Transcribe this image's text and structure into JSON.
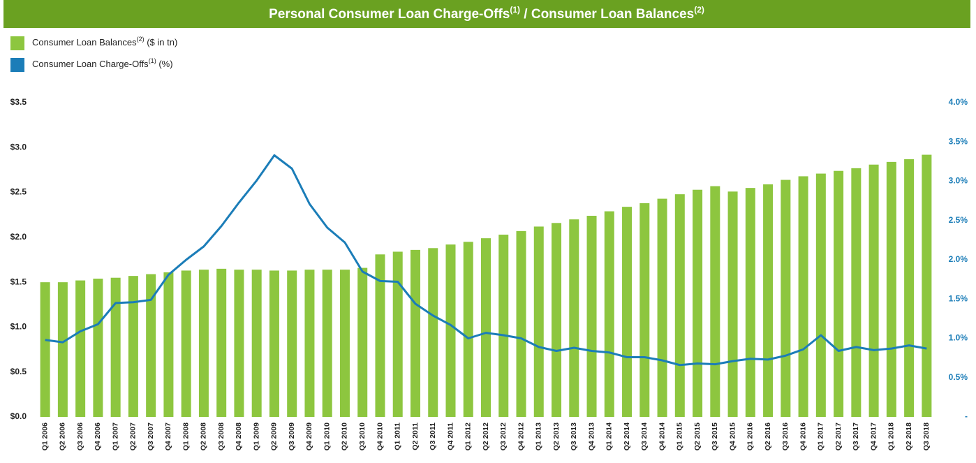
{
  "chart_data": {
    "type": "bar_line",
    "title": [
      "Personal Consumer Loan Charge-Offs",
      "(1)",
      " / Consumer Loan Balances",
      "(2)"
    ],
    "title_color": "#6aa121",
    "categories": [
      "Q1 2006",
      "Q2 2006",
      "Q3 2006",
      "Q4 2006",
      "Q1 2007",
      "Q2 2007",
      "Q3 2007",
      "Q4 2007",
      "Q1 2008",
      "Q2 2008",
      "Q3 2008",
      "Q4 2008",
      "Q1 2009",
      "Q2 2009",
      "Q3 2009",
      "Q4 2009",
      "Q1 2010",
      "Q2 2010",
      "Q3 2010",
      "Q4 2010",
      "Q1 2011",
      "Q2 2011",
      "Q3 2011",
      "Q4 2011",
      "Q1 2012",
      "Q2 2012",
      "Q3 2012",
      "Q4 2012",
      "Q1 2013",
      "Q2 2013",
      "Q3 2013",
      "Q4 2013",
      "Q1 2014",
      "Q2 2014",
      "Q3 2014",
      "Q4 2014",
      "Q1 2015",
      "Q2 2015",
      "Q3 2015",
      "Q4 2015",
      "Q1 2016",
      "Q2 2016",
      "Q3 2016",
      "Q4 2016",
      "Q1 2017",
      "Q2 2017",
      "Q3 2017",
      "Q4 2017",
      "Q1 2018",
      "Q2 2018",
      "Q3 2018"
    ],
    "series": [
      {
        "name": "Consumer Loan Balances",
        "name_note": "(2)",
        "name_unit": "($ in tn)",
        "type": "bar",
        "color": "#8dc63f",
        "axis": "y",
        "values": [
          1.5,
          1.5,
          1.52,
          1.54,
          1.55,
          1.57,
          1.59,
          1.61,
          1.63,
          1.64,
          1.65,
          1.64,
          1.64,
          1.63,
          1.63,
          1.64,
          1.64,
          1.64,
          1.66,
          1.81,
          1.84,
          1.86,
          1.88,
          1.92,
          1.95,
          1.99,
          2.03,
          2.07,
          2.12,
          2.16,
          2.2,
          2.24,
          2.29,
          2.34,
          2.38,
          2.43,
          2.48,
          2.53,
          2.57,
          2.51,
          2.55,
          2.59,
          2.64,
          2.68,
          2.71,
          2.74,
          2.77,
          2.81,
          2.84,
          2.87,
          2.92
        ]
      },
      {
        "name": "Consumer Loan Charge-Offs",
        "name_note": "(1)",
        "name_unit": "(%)",
        "type": "line",
        "color": "#1b7db8",
        "axis": "y2",
        "values": [
          0.98,
          0.95,
          1.09,
          1.18,
          1.45,
          1.46,
          1.49,
          1.81,
          2.0,
          2.17,
          2.43,
          2.73,
          3.01,
          3.33,
          3.16,
          2.71,
          2.41,
          2.22,
          1.85,
          1.73,
          1.72,
          1.44,
          1.29,
          1.17,
          1.0,
          1.07,
          1.04,
          1.0,
          0.89,
          0.84,
          0.88,
          0.84,
          0.82,
          0.76,
          0.76,
          0.72,
          0.66,
          0.68,
          0.67,
          0.71,
          0.74,
          0.73,
          0.78,
          0.86,
          1.04,
          0.84,
          0.89,
          0.85,
          0.87,
          0.91,
          0.87
        ]
      }
    ],
    "ylim": [
      0,
      3.5
    ],
    "yticks": [
      {
        "value": 0,
        "label": "$0.0"
      },
      {
        "value": 0.5,
        "label": "$0.5"
      },
      {
        "value": 1,
        "label": "$1.0"
      },
      {
        "value": 1.5,
        "label": "$1.5"
      },
      {
        "value": 2,
        "label": "$2.0"
      },
      {
        "value": 2.5,
        "label": "$2.5"
      },
      {
        "value": 3,
        "label": "$3.0"
      },
      {
        "value": 3.5,
        "label": "$3.5"
      }
    ],
    "y2lim": [
      0,
      4
    ],
    "y2ticks": [
      {
        "value": 0,
        "label": "-"
      },
      {
        "value": 0.5,
        "label": "0.5%"
      },
      {
        "value": 1,
        "label": "1.0%"
      },
      {
        "value": 1.5,
        "label": "1.5%"
      },
      {
        "value": 2,
        "label": "2.0%"
      },
      {
        "value": 2.5,
        "label": "2.5%"
      },
      {
        "value": 3,
        "label": "3.0%"
      },
      {
        "value": 3.5,
        "label": "3.5%"
      },
      {
        "value": 4,
        "label": "4.0%"
      }
    ],
    "y2tick_color": "#1b7db8",
    "grid": false
  }
}
